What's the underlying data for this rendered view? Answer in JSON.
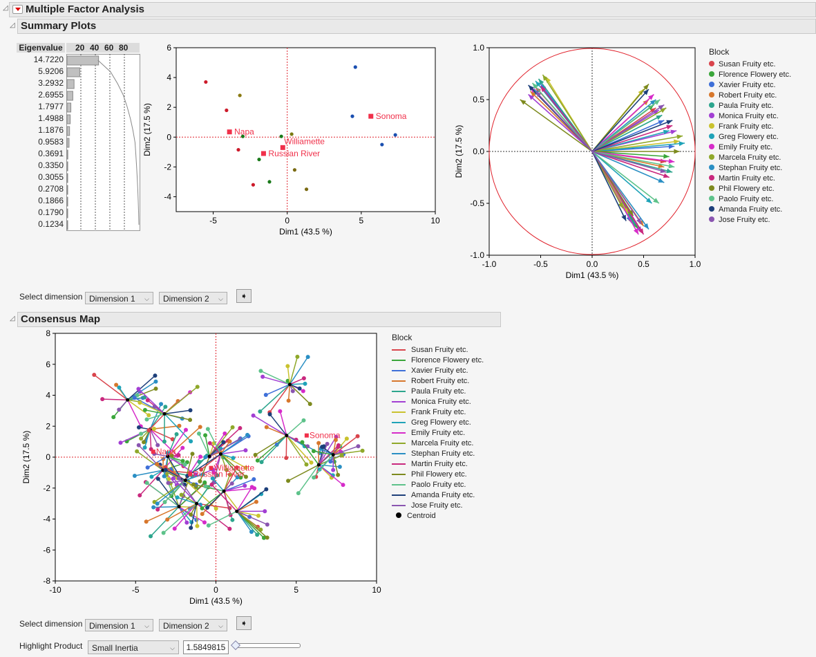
{
  "title": "Multiple Factor Analysis",
  "summary_title": "Summary Plots",
  "consensus_title": "Consensus Map",
  "eigen": {
    "header": "Eigenvalue",
    "ticks": [
      "20",
      "40",
      "60",
      "80"
    ],
    "values": [
      "14.7220",
      "5.9206",
      "3.2932",
      "2.6955",
      "1.7977",
      "1.4988",
      "1.1876",
      "0.9583",
      "0.3691",
      "0.3350",
      "0.3055",
      "0.2708",
      "0.1866",
      "0.1790",
      "0.1234"
    ],
    "pct": [
      43.5,
      17.5,
      9.7,
      8.0,
      5.3,
      4.4,
      3.5,
      2.8,
      1.1,
      1.0,
      0.9,
      0.8,
      0.6,
      0.5,
      0.4
    ]
  },
  "controls": {
    "select_dimension": "Select dimension",
    "dim1": "Dimension 1",
    "dim2": "Dimension 2",
    "highlight_label": "Highlight Product",
    "highlight_value": "Small Inertia",
    "slider_value": "1.5849815",
    "slider_fraction": 0.0
  },
  "blocks": [
    "Susan Fruity etc.",
    "Florence Flowery etc.",
    "Xavier Fruity etc.",
    "Robert Fruity etc.",
    "Paula Fruity etc.",
    "Monica Fruity etc.",
    "Frank Fruity etc.",
    "Greg Flowery etc.",
    "Emily Fruity etc.",
    "Marcela Fruity etc.",
    "Stephan Fruity etc.",
    "Martin Fruity etc.",
    "Phil Flowery etc.",
    "Paolo Fruity etc.",
    "Amanda Fruity etc.",
    "Jose Fruity etc."
  ],
  "legend_title": "Block",
  "centroid_label": "Centroid",
  "colors": [
    "#d9444c",
    "#3aa63a",
    "#3e6fd8",
    "#d7772c",
    "#2ca58d",
    "#a23fd3",
    "#c9c22e",
    "#1fa3b8",
    "#d62bc9",
    "#8fa82a",
    "#2a8fc4",
    "#c9287e",
    "#7d8a1e",
    "#5dc28a",
    "#1d3f7a",
    "#8a55b0"
  ],
  "chart_data": [
    {
      "type": "scatter",
      "name": "score-plot",
      "xlabel": "Dim1  (43.5 %)",
      "ylabel": "Dim2  (17.5 %)",
      "xlim": [
        -7.5,
        10
      ],
      "ylim": [
        -5,
        6
      ],
      "xticks": [
        -5,
        0,
        5,
        10
      ],
      "yticks": [
        -4,
        -2,
        0,
        2,
        4,
        6
      ],
      "points": [
        {
          "x": -5.5,
          "y": 3.7,
          "c": "#cc1a2a"
        },
        {
          "x": -4.1,
          "y": 1.8,
          "c": "#cc1a2a"
        },
        {
          "x": -3.3,
          "y": -0.85,
          "c": "#cc1a2a"
        },
        {
          "x": -2.3,
          "y": -3.2,
          "c": "#cc1a2a"
        },
        {
          "x": -3.2,
          "y": 2.8,
          "c": "#8a7a12"
        },
        {
          "x": -3.0,
          "y": 0.05,
          "c": "#1a7a1a"
        },
        {
          "x": -1.9,
          "y": -1.5,
          "c": "#1a7a1a"
        },
        {
          "x": -1.2,
          "y": -3.0,
          "c": "#1a7a1a"
        },
        {
          "x": -0.4,
          "y": 0.05,
          "c": "#1a7a1a"
        },
        {
          "x": 0.3,
          "y": 0.2,
          "c": "#7a7a12"
        },
        {
          "x": 0.5,
          "y": -2.2,
          "c": "#7a6a12"
        },
        {
          "x": 1.3,
          "y": -3.5,
          "c": "#7a6a12"
        },
        {
          "x": 4.6,
          "y": 4.7,
          "c": "#1a4fb0"
        },
        {
          "x": 4.4,
          "y": 1.4,
          "c": "#1a4fb0"
        },
        {
          "x": 6.4,
          "y": -0.5,
          "c": "#1a4fb0"
        },
        {
          "x": 7.3,
          "y": 0.15,
          "c": "#1a4fb0"
        }
      ],
      "products": [
        {
          "label": "Napa",
          "x": -3.9,
          "y": 0.35
        },
        {
          "label": "Williamette",
          "x": -0.3,
          "y": -0.7
        },
        {
          "label": "Russian River",
          "x": -1.6,
          "y": -1.1
        },
        {
          "label": "Sonoma",
          "x": 5.65,
          "y": 1.4
        }
      ]
    },
    {
      "type": "scatter",
      "name": "correlation-circle",
      "xlabel": "Dim1  (43.5 %)",
      "ylabel": "Dim2  (17.5 %)",
      "xlim": [
        -1,
        1
      ],
      "ylim": [
        -1,
        1
      ],
      "xticks": [
        "-1.0",
        "-0.5",
        "0.0",
        "0.5",
        "1.0"
      ],
      "yticks": [
        "-1.0",
        "-0.5",
        "0.0",
        "0.5",
        "1.0"
      ],
      "arrows": [
        [
          [
            -0.55,
            0.62
          ],
          [
            0.62,
            0.42
          ],
          [
            0.72,
            -0.1
          ],
          [
            0.4,
            -0.7
          ]
        ],
        [
          [
            -0.58,
            0.6
          ],
          [
            0.6,
            0.45
          ],
          [
            0.75,
            -0.05
          ],
          [
            0.45,
            -0.75
          ]
        ],
        [
          [
            -0.5,
            0.65
          ],
          [
            0.7,
            0.3
          ],
          [
            0.8,
            0.05
          ],
          [
            0.38,
            -0.68
          ]
        ],
        [
          [
            -0.6,
            0.58
          ],
          [
            0.55,
            0.5
          ],
          [
            0.7,
            -0.15
          ],
          [
            0.5,
            -0.72
          ]
        ],
        [
          [
            -0.52,
            0.7
          ],
          [
            0.68,
            0.35
          ],
          [
            0.78,
            -0.2
          ],
          [
            0.42,
            -0.72
          ]
        ],
        [
          [
            -0.62,
            0.55
          ],
          [
            0.65,
            0.4
          ],
          [
            0.82,
            0.2
          ],
          [
            0.48,
            -0.78
          ]
        ],
        [
          [
            -0.45,
            0.72
          ],
          [
            0.5,
            0.6
          ],
          [
            0.85,
            0.1
          ],
          [
            0.35,
            -0.6
          ]
        ],
        [
          [
            -0.55,
            0.68
          ],
          [
            0.75,
            0.2
          ],
          [
            0.9,
            0.08
          ],
          [
            0.58,
            -0.5
          ]
        ],
        [
          [
            -0.6,
            0.62
          ],
          [
            0.6,
            0.55
          ],
          [
            0.8,
            -0.1
          ],
          [
            0.45,
            -0.8
          ]
        ],
        [
          [
            -0.48,
            0.74
          ],
          [
            0.72,
            0.42
          ],
          [
            0.88,
            0.15
          ],
          [
            0.3,
            -0.55
          ]
        ],
        [
          [
            -0.57,
            0.6
          ],
          [
            0.62,
            0.5
          ],
          [
            0.7,
            -0.3
          ],
          [
            0.55,
            -0.75
          ]
        ],
        [
          [
            -0.5,
            0.63
          ],
          [
            0.78,
            0.25
          ],
          [
            0.75,
            -0.25
          ],
          [
            0.5,
            -0.8
          ]
        ],
        [
          [
            -0.7,
            0.5
          ],
          [
            0.55,
            0.65
          ],
          [
            0.85,
            0.0
          ],
          [
            0.4,
            -0.62
          ]
        ],
        [
          [
            -0.58,
            0.66
          ],
          [
            0.66,
            0.5
          ],
          [
            0.8,
            -0.15
          ],
          [
            0.65,
            -0.5
          ]
        ],
        [
          [
            -0.62,
            0.64
          ],
          [
            0.55,
            0.6
          ],
          [
            0.78,
            0.3
          ],
          [
            0.33,
            -0.67
          ]
        ],
        [
          [
            -0.55,
            0.58
          ],
          [
            0.7,
            0.45
          ],
          [
            0.72,
            -0.2
          ],
          [
            0.48,
            -0.7
          ]
        ]
      ]
    },
    {
      "type": "scatter",
      "name": "consensus-map",
      "xlabel": "Dim1  (43.5 %)",
      "ylabel": "Dim2  (17.5 %)",
      "xlim": [
        -10,
        10
      ],
      "ylim": [
        -8,
        8
      ],
      "xticks": [
        -10,
        -5,
        0,
        5,
        10
      ],
      "yticks": [
        -8,
        -6,
        -4,
        -2,
        0,
        2,
        4,
        6,
        8
      ],
      "spread": 1.6
    }
  ]
}
